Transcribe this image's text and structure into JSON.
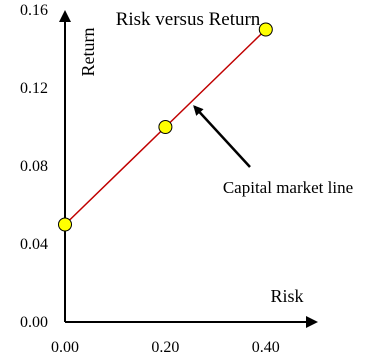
{
  "chart_data": {
    "type": "line",
    "title": "Risk versus Return",
    "xlabel": "Risk",
    "ylabel": "Return",
    "xlim": [
      0,
      0.5
    ],
    "ylim": [
      0,
      0.16
    ],
    "x_ticks": [
      0,
      0.2,
      0.4
    ],
    "x_tick_labels": [
      "0.00",
      "0.20",
      "0.40"
    ],
    "y_ticks": [
      0,
      0.04,
      0.08,
      0.12,
      0.16
    ],
    "y_tick_labels": [
      "0.00",
      "0.04",
      "0.08",
      "0.12",
      "0.16"
    ],
    "grid": false,
    "series": [
      {
        "x": [
          0,
          0.2,
          0.4
        ],
        "y": [
          0.05,
          0.1,
          0.15
        ],
        "line_color": "#c00000",
        "marker_color": "#ffff00"
      }
    ],
    "annotations": [
      {
        "text": "Capital market line",
        "target_x": 0.25,
        "target_y": 0.1125
      }
    ]
  }
}
